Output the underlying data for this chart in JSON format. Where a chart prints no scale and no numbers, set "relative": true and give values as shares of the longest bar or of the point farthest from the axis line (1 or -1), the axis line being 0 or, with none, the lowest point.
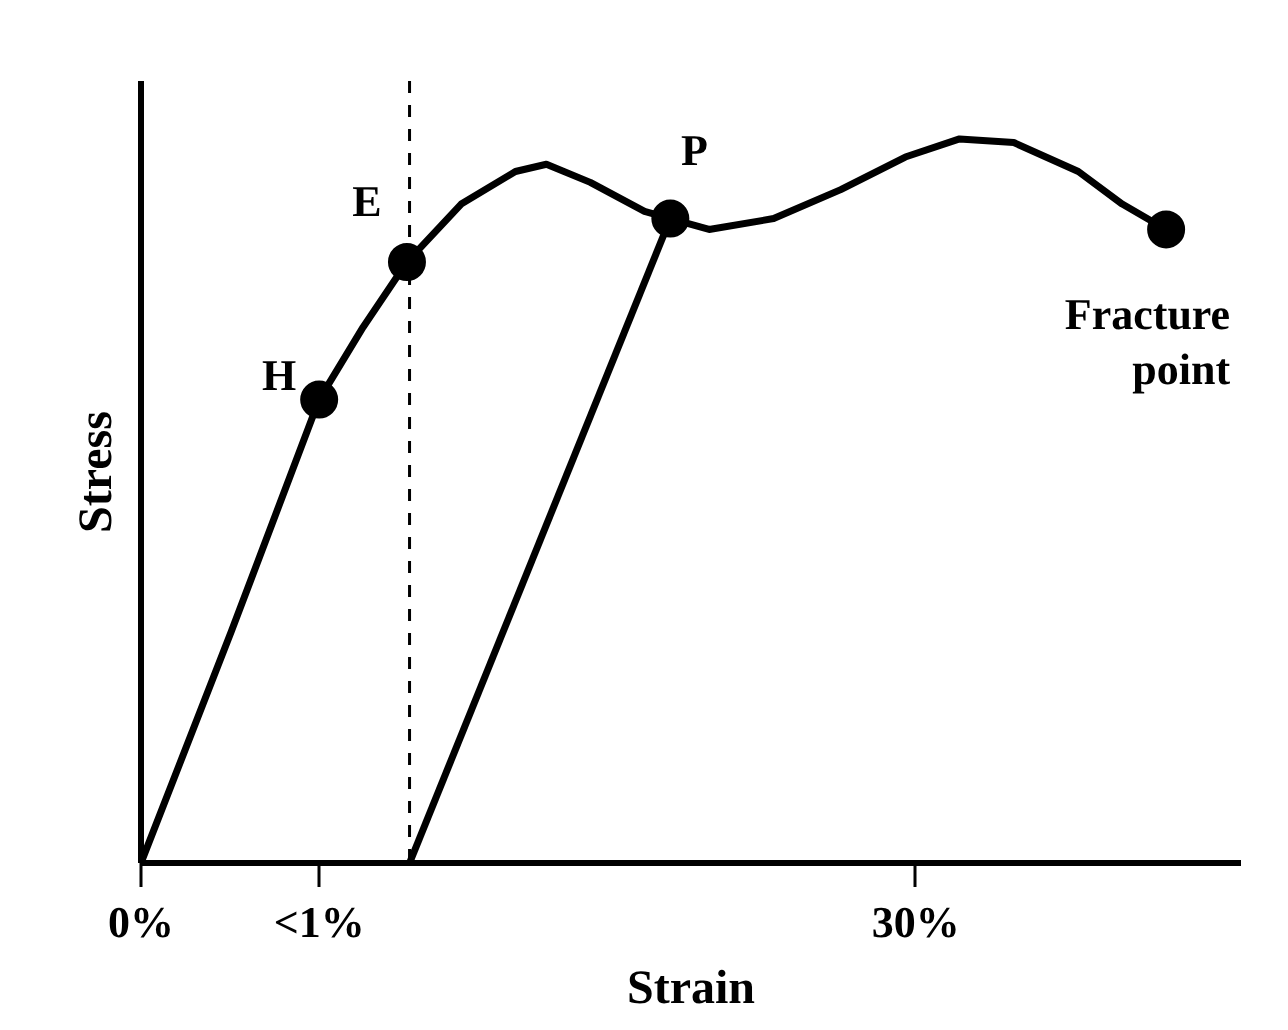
{
  "chart_data": {
    "type": "line",
    "relative": true,
    "xlabel": "Strain",
    "ylabel": "Stress",
    "xlim": [
      0,
      42.6
    ],
    "xticks": [
      {
        "value": 0,
        "label": "0%"
      },
      {
        "value": 6.9,
        "label": "<1%"
      },
      {
        "value": 30,
        "label": "30%"
      }
    ],
    "tick_labels": "x",
    "grid": false,
    "line_style": "solid",
    "series": [
      {
        "color": "#000000",
        "marker": "none",
        "x": [
          0,
          3.5,
          6.9,
          8.6,
          10.3,
          12.4,
          14.5,
          15.7,
          17.4,
          19.5,
          20.5,
          22.0,
          24.5,
          27.1,
          29.6,
          31.7,
          33.8,
          36.3,
          38.0,
          39.7
        ],
        "values": [
          0,
          0.32,
          0.64,
          0.74,
          0.83,
          0.91,
          0.955,
          0.965,
          0.94,
          0.9,
          0.89,
          0.875,
          0.89,
          0.93,
          0.975,
          1.0,
          0.995,
          0.955,
          0.91,
          0.875
        ]
      },
      {
        "color": "#000000",
        "marker": "none",
        "x": [
          20.5,
          10.4
        ],
        "values": [
          0.89,
          0
        ]
      },
      {
        "type": "scatter",
        "color": "#000000",
        "marker": "circle",
        "x": [
          6.9,
          10.3,
          20.5,
          39.7
        ],
        "values": [
          0.64,
          0.83,
          0.89,
          0.875
        ]
      }
    ],
    "ref_lines": [
      {
        "axis": "x",
        "value": 10.4,
        "color": "#000000",
        "line_style": "dashed"
      }
    ],
    "annotations": [
      {
        "text": "H",
        "x": 6.9,
        "y": 0.64
      },
      {
        "text": "E",
        "x": 10.3,
        "y": 0.83
      },
      {
        "text": "P",
        "x": 20.5,
        "y": 0.89
      },
      {
        "text": "Fracture point",
        "x": 39.7,
        "y": 0.875
      }
    ]
  }
}
